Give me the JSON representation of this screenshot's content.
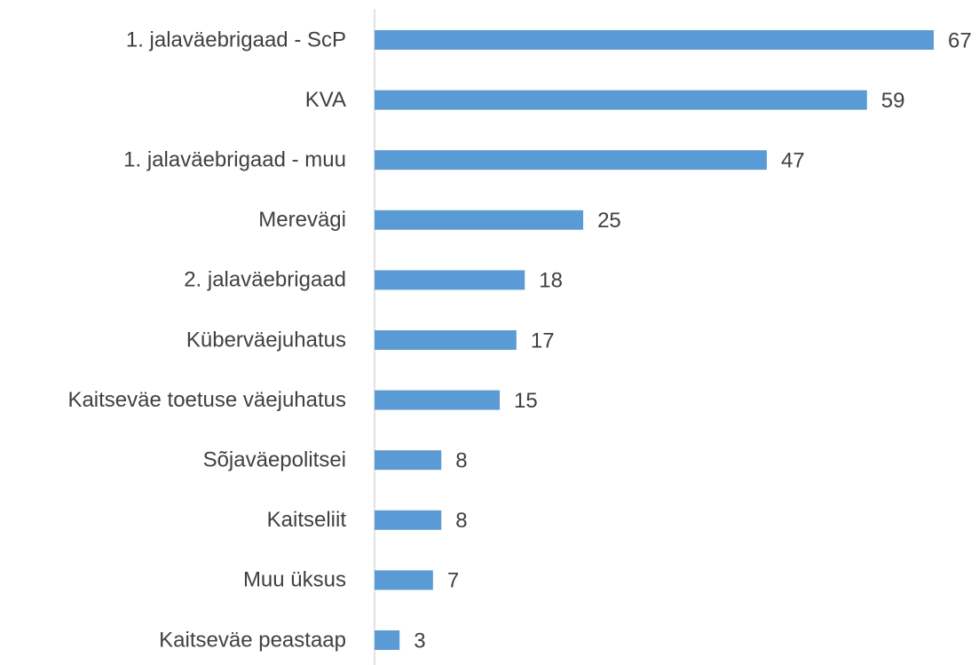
{
  "chart_data": {
    "type": "barh",
    "color": "#5b9bd5",
    "categories": [
      "1. jalaväebrigaad - ScP",
      "KVA",
      "1. jalaväebrigaad - muu",
      "Merevägi",
      "2. jalaväebrigaad",
      "Küberväejuhatus",
      "Kaitseväe toetuse väejuhatus",
      "Sõjaväepolitsei",
      "Kaitseliit",
      "Muu üksus",
      "Kaitseväe peastaap"
    ],
    "values": [
      67,
      59,
      47,
      25,
      18,
      17,
      15,
      8,
      8,
      7,
      3
    ]
  }
}
